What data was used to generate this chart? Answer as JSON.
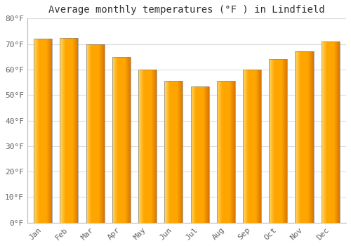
{
  "title": "Average monthly temperatures (°F ) in Lindfield",
  "months": [
    "Jan",
    "Feb",
    "Mar",
    "Apr",
    "May",
    "Jun",
    "Jul",
    "Aug",
    "Sep",
    "Oct",
    "Nov",
    "Dec"
  ],
  "values": [
    72,
    72.5,
    70,
    65,
    60,
    55.5,
    53.5,
    55.5,
    60,
    64,
    67,
    71
  ],
  "bar_color_gradient_left": "#FFD966",
  "bar_color_gradient_mid": "#FFA500",
  "bar_color_gradient_right": "#E8820A",
  "bar_edge_color": "#888888",
  "background_color": "#FFFFFF",
  "plot_bg_color": "#FFFFFF",
  "ylim": [
    0,
    80
  ],
  "ytick_step": 10,
  "title_fontsize": 10,
  "tick_fontsize": 8,
  "grid_color": "#DDDDDD",
  "tick_color": "#666666",
  "title_color": "#333333",
  "bar_width": 0.7
}
